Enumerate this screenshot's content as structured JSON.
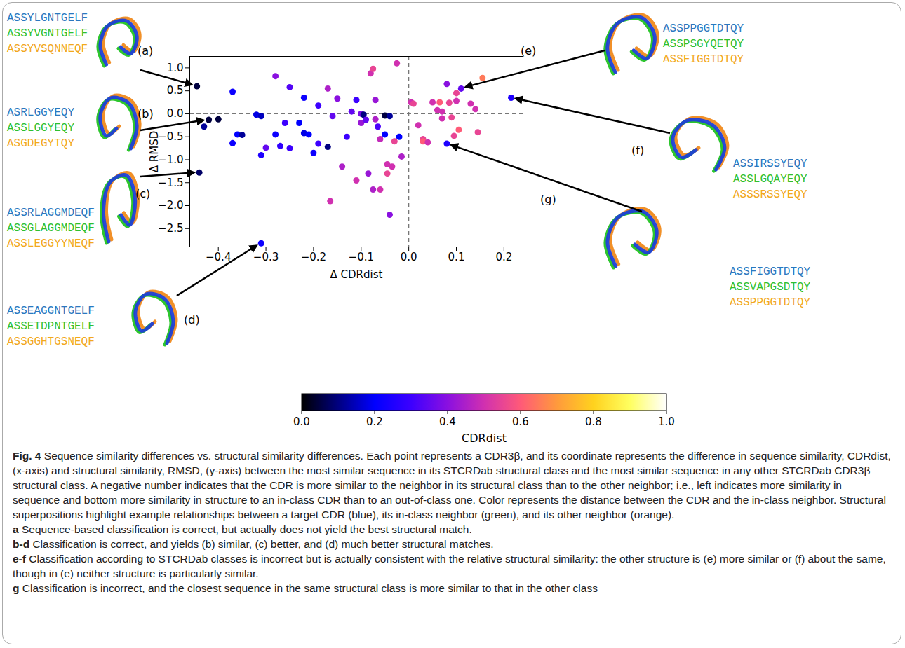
{
  "chart_data": {
    "type": "scatter",
    "x_label": "Δ CDRdist",
    "y_label": "Δ RMSD",
    "xlim": [
      -0.46,
      0.24
    ],
    "ylim": [
      -2.9,
      1.25
    ],
    "xticks": [
      {
        "value": -0.4,
        "label": "−0.4"
      },
      {
        "value": -0.3,
        "label": "−0.3"
      },
      {
        "value": -0.2,
        "label": "−0.2"
      },
      {
        "value": -0.1,
        "label": "−0.1"
      },
      {
        "value": 0,
        "label": "0.0"
      },
      0.1,
      0.2
    ],
    "yticks": [
      {
        "value": -2.5,
        "label": "−2.5"
      },
      {
        "value": -2,
        "label": "−2.0"
      },
      {
        "value": -1.5,
        "label": "−1.5"
      },
      {
        "value": -1,
        "label": "−1.0"
      },
      {
        "value": -0.5,
        "label": "−0.5"
      },
      {
        "value": 0,
        "label": "0.0"
      },
      0.5,
      {
        "value": 1,
        "label": "1.0"
      }
    ],
    "grid": false,
    "reference_lines": {
      "x": [
        0
      ],
      "y": [
        0
      ]
    },
    "colorbar": {
      "label": "CDRdist",
      "lim": [
        0,
        1
      ],
      "ticks": [
        {
          "value": 0,
          "label": "0.0"
        },
        0.2,
        0.4,
        0.6,
        0.8,
        {
          "value": 1,
          "label": "1.0"
        }
      ],
      "colors": [
        "#000000",
        "#000080",
        "#0000ff",
        "#3c00ff",
        "#8a10e0",
        "#d030b0",
        "#ff5a78",
        "#ff9a3c",
        "#ffd21e",
        "#ffff60",
        "#ffffff"
      ]
    },
    "points": [
      {
        "x": -0.445,
        "y": 0.6,
        "cdrdist": 0.05,
        "label": "(a)",
        "sequences": [
          "ASSYLGNTGELF",
          "ASSYVGNTGELF",
          "ASSYVSQNNEQF"
        ]
      },
      {
        "x": -0.42,
        "y": -0.13,
        "cdrdist": 0.05,
        "label": "(b)",
        "sequences": [
          "ASRLGGYEQY",
          "ASSLGGYEQY",
          "ASGDEGYTQY"
        ]
      },
      {
        "x": -0.44,
        "y": -1.28,
        "cdrdist": 0.08,
        "label": "(c)",
        "sequences": [
          "ASSRLAGGMDEQF",
          "ASSGLAGGMDEQF",
          "ASSLEGGYYNEQF"
        ]
      },
      {
        "x": -0.31,
        "y": -2.82,
        "cdrdist": 0.22,
        "label": "(d)",
        "sequences": [
          "ASSEAGGNTGELF",
          "ASSETDPNTGELF",
          "ASSGGHTGSNEQF"
        ]
      },
      {
        "x": 0.11,
        "y": 0.55,
        "cdrdist": 0.35,
        "label": "(e)",
        "sequences": [
          "ASSPPGGTDTQY",
          "ASSPSGYQETQY",
          "ASSFIGGTDTQY"
        ]
      },
      {
        "x": 0.215,
        "y": 0.35,
        "cdrdist": 0.25,
        "label": "(f)",
        "sequences": [
          "ASSIRSSYEQY",
          "ASSLGQAYEQY",
          "ASSSRSSYEQY"
        ]
      },
      {
        "x": 0.08,
        "y": -0.65,
        "cdrdist": 0.25,
        "label": "(g)",
        "sequences": [
          "ASSFIGGTDTQY",
          "ASSVAPGSDTQY",
          "ASSPPGGTDTQY"
        ]
      },
      {
        "x": -0.43,
        "y": -0.28,
        "cdrdist": 0.12
      },
      {
        "x": -0.4,
        "y": -0.12,
        "cdrdist": 0.05
      },
      {
        "x": -0.37,
        "y": 0.48,
        "cdrdist": 0.22
      },
      {
        "x": -0.37,
        "y": -0.64,
        "cdrdist": 0.22
      },
      {
        "x": -0.36,
        "y": -0.45,
        "cdrdist": 0.2
      },
      {
        "x": -0.35,
        "y": -0.46,
        "cdrdist": 0.12
      },
      {
        "x": -0.32,
        "y": -0.02,
        "cdrdist": 0.18
      },
      {
        "x": -0.31,
        "y": -0.05,
        "cdrdist": 0.15
      },
      {
        "x": -0.31,
        "y": -0.9,
        "cdrdist": 0.25
      },
      {
        "x": -0.3,
        "y": -0.74,
        "cdrdist": 0.35
      },
      {
        "x": -0.28,
        "y": 0.82,
        "cdrdist": 0.4
      },
      {
        "x": -0.28,
        "y": -0.45,
        "cdrdist": 0.22
      },
      {
        "x": -0.27,
        "y": -0.7,
        "cdrdist": 0.28
      },
      {
        "x": -0.26,
        "y": -0.2,
        "cdrdist": 0.3
      },
      {
        "x": -0.25,
        "y": 0.58,
        "cdrdist": 0.33
      },
      {
        "x": -0.25,
        "y": -0.75,
        "cdrdist": 0.3
      },
      {
        "x": -0.23,
        "y": -0.2,
        "cdrdist": 0.2
      },
      {
        "x": -0.22,
        "y": 0.35,
        "cdrdist": 0.22
      },
      {
        "x": -0.22,
        "y": -0.42,
        "cdrdist": 0.18
      },
      {
        "x": -0.21,
        "y": -0.45,
        "cdrdist": 0.2
      },
      {
        "x": -0.2,
        "y": -0.85,
        "cdrdist": 0.22
      },
      {
        "x": -0.19,
        "y": 0.18,
        "cdrdist": 0.3
      },
      {
        "x": -0.19,
        "y": -0.65,
        "cdrdist": 0.3
      },
      {
        "x": -0.17,
        "y": 0.55,
        "cdrdist": 0.45
      },
      {
        "x": -0.17,
        "y": -0.72,
        "cdrdist": 0.1
      },
      {
        "x": -0.165,
        "y": -1.9,
        "cdrdist": 0.5
      },
      {
        "x": -0.16,
        "y": -0.05,
        "cdrdist": 0.35
      },
      {
        "x": -0.15,
        "y": 0.33,
        "cdrdist": 0.4
      },
      {
        "x": -0.14,
        "y": -1.15,
        "cdrdist": 0.45
      },
      {
        "x": -0.13,
        "y": -0.5,
        "cdrdist": 0.3
      },
      {
        "x": -0.12,
        "y": 0.05,
        "cdrdist": 0.35
      },
      {
        "x": -0.11,
        "y": 0.3,
        "cdrdist": 0.3
      },
      {
        "x": -0.11,
        "y": -1.45,
        "cdrdist": 0.5
      },
      {
        "x": -0.1,
        "y": 0,
        "cdrdist": 0.38
      },
      {
        "x": -0.1,
        "y": -0.2,
        "cdrdist": 0.42
      },
      {
        "x": -0.095,
        "y": -0.02,
        "cdrdist": 0.1
      },
      {
        "x": -0.09,
        "y": -0.13,
        "cdrdist": 0.35
      },
      {
        "x": -0.085,
        "y": -1.3,
        "cdrdist": 0.42
      },
      {
        "x": -0.08,
        "y": 0.88,
        "cdrdist": 0.5
      },
      {
        "x": -0.075,
        "y": 0.98,
        "cdrdist": 0.55
      },
      {
        "x": -0.07,
        "y": 0.3,
        "cdrdist": 0.42
      },
      {
        "x": -0.07,
        "y": -0.12,
        "cdrdist": 0.45
      },
      {
        "x": -0.065,
        "y": -0.28,
        "cdrdist": 0.32
      },
      {
        "x": -0.075,
        "y": -1.65,
        "cdrdist": 0.45
      },
      {
        "x": -0.06,
        "y": -0.55,
        "cdrdist": 0.48
      },
      {
        "x": -0.06,
        "y": -1.65,
        "cdrdist": 0.5
      },
      {
        "x": -0.05,
        "y": -0.04,
        "cdrdist": 0.05
      },
      {
        "x": -0.05,
        "y": -0.45,
        "cdrdist": 0.2
      },
      {
        "x": -0.045,
        "y": -1.1,
        "cdrdist": 0.5
      },
      {
        "x": -0.045,
        "y": -1.3,
        "cdrdist": 0.55
      },
      {
        "x": -0.04,
        "y": -0.05,
        "cdrdist": 0.12
      },
      {
        "x": -0.04,
        "y": -2.2,
        "cdrdist": 0.4
      },
      {
        "x": -0.035,
        "y": -1.15,
        "cdrdist": 0.5
      },
      {
        "x": -0.03,
        "y": -0.6,
        "cdrdist": 0.55
      },
      {
        "x": -0.025,
        "y": 1.1,
        "cdrdist": 0.5
      },
      {
        "x": -0.02,
        "y": -0.5,
        "cdrdist": 0.2
      },
      {
        "x": -0.015,
        "y": -0.93,
        "cdrdist": 0.45
      },
      {
        "x": 0.005,
        "y": 0.25,
        "cdrdist": 0.5
      },
      {
        "x": 0.01,
        "y": 0.22,
        "cdrdist": 0.55
      },
      {
        "x": 0.02,
        "y": -0.25,
        "cdrdist": 0.5
      },
      {
        "x": 0.03,
        "y": -0.55,
        "cdrdist": 0.55
      },
      {
        "x": 0.03,
        "y": -0.6,
        "cdrdist": 0.6
      },
      {
        "x": 0.04,
        "y": -0.62,
        "cdrdist": 0.5
      },
      {
        "x": 0.05,
        "y": 0.25,
        "cdrdist": 0.5
      },
      {
        "x": 0.06,
        "y": 0.08,
        "cdrdist": 0.5
      },
      {
        "x": 0.065,
        "y": 0.25,
        "cdrdist": 0.6
      },
      {
        "x": 0.07,
        "y": -0.1,
        "cdrdist": 0.5
      },
      {
        "x": 0.07,
        "y": 0.05,
        "cdrdist": 0.5
      },
      {
        "x": 0.08,
        "y": 0.65,
        "cdrdist": 0.4
      },
      {
        "x": 0.085,
        "y": 0.24,
        "cdrdist": 0.55
      },
      {
        "x": 0.09,
        "y": -0.08,
        "cdrdist": 0.55
      },
      {
        "x": 0.095,
        "y": -0.48,
        "cdrdist": 0.55
      },
      {
        "x": 0.1,
        "y": 0.28,
        "cdrdist": 0.5
      },
      {
        "x": 0.1,
        "y": 0.45,
        "cdrdist": 0.55
      },
      {
        "x": 0.105,
        "y": -0.35,
        "cdrdist": 0.6
      },
      {
        "x": 0.13,
        "y": 0.22,
        "cdrdist": 0.5
      },
      {
        "x": 0.14,
        "y": 0.1,
        "cdrdist": 0.5
      },
      {
        "x": 0.145,
        "y": -0.4,
        "cdrdist": 0.55
      },
      {
        "x": 0.155,
        "y": 0.78,
        "cdrdist": 0.65
      }
    ]
  },
  "caption": {
    "label": "Fig. 4",
    "text": "Sequence similarity differences vs. structural similarity differences. Each point represents a CDR3β, and its coordinate represents the difference in sequence similarity, CDRdist, (x-axis) and structural similarity, RMSD, (y-axis) between the most similar sequence in its STCRDab structural class and the most similar sequence in any other STCRDab CDR3β structural class. A negative number indicates that the CDR is more similar to the neighbor in its structural class than to the other neighbor; i.e., left indicates more similarity in sequence and bottom more similarity in structure to an in-class CDR than to an out-of-class one. Color represents the distance between the CDR and the in-class neighbor. Structural superpositions highlight example relationships between a target CDR (blue), its in-class neighbor (green), and its other neighbor (orange).",
    "panels": [
      {
        "label": "a",
        "text": "Sequence-based classification is correct, but actually does not yield the best structural match."
      },
      {
        "label": "b-d",
        "text": "Classification is correct, and yields (b) similar, (c) better, and (d) much better structural matches."
      },
      {
        "label": "e-f",
        "text": "Classification according to STCRDab classes is incorrect but is actually consistent with the relative structural similarity: the other structure is (e) more similar or (f) about the same, though in (e) neither structure is particularly similar."
      },
      {
        "label": "g",
        "text": "Classification is incorrect, and the closest sequence in the same structural class is more similar to that in the other class"
      }
    ]
  }
}
